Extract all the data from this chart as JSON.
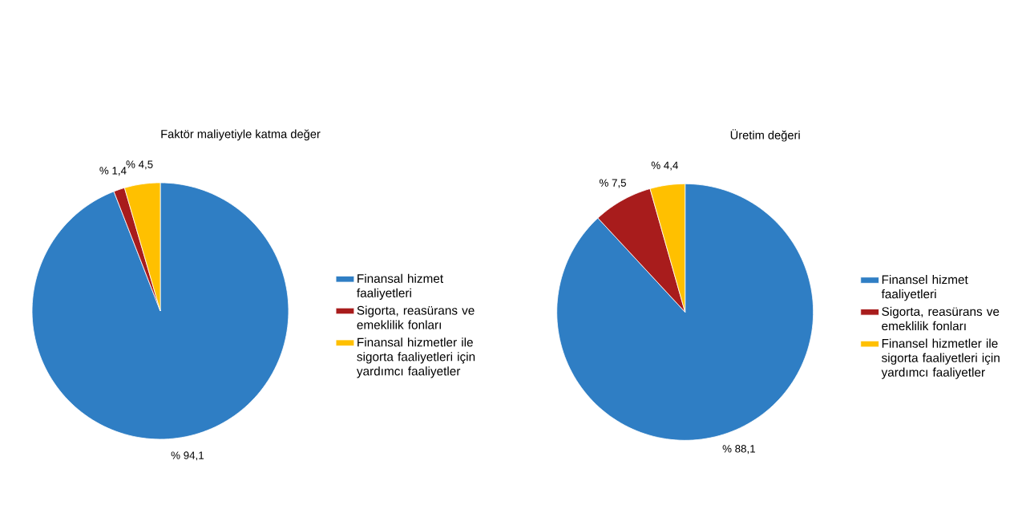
{
  "chart_data": [
    {
      "type": "pie",
      "title": "Faktör maliyetiyle katma değer",
      "categories": [
        "Finansal hizmet faaliyetleri",
        "Sigorta, reasürans ve emeklilik fonları",
        "Finansal hizmetler ile sigorta faaliyetleri için yardımcı faaliyetler"
      ],
      "values": [
        94.1,
        1.4,
        4.5
      ],
      "colors": [
        "#2f7ec4",
        "#a81c1c",
        "#ffc000"
      ],
      "value_labels": [
        "% 94,1",
        "% 1,4",
        "% 4,5"
      ],
      "legend": "right"
    },
    {
      "type": "pie",
      "title": "Üretim değeri",
      "categories": [
        "Finansel hizmet faaliyetleri",
        "Sigorta, reasürans ve emeklilik fonları",
        "Finansel hizmetler ile sigorta faaliyetleri için yardımcı faaliyetler"
      ],
      "values": [
        88.1,
        7.5,
        4.4
      ],
      "colors": [
        "#2f7ec4",
        "#a81c1c",
        "#ffc000"
      ],
      "value_labels": [
        "% 88,1",
        "% 7,5",
        "% 4,4"
      ],
      "legend": "right"
    }
  ]
}
